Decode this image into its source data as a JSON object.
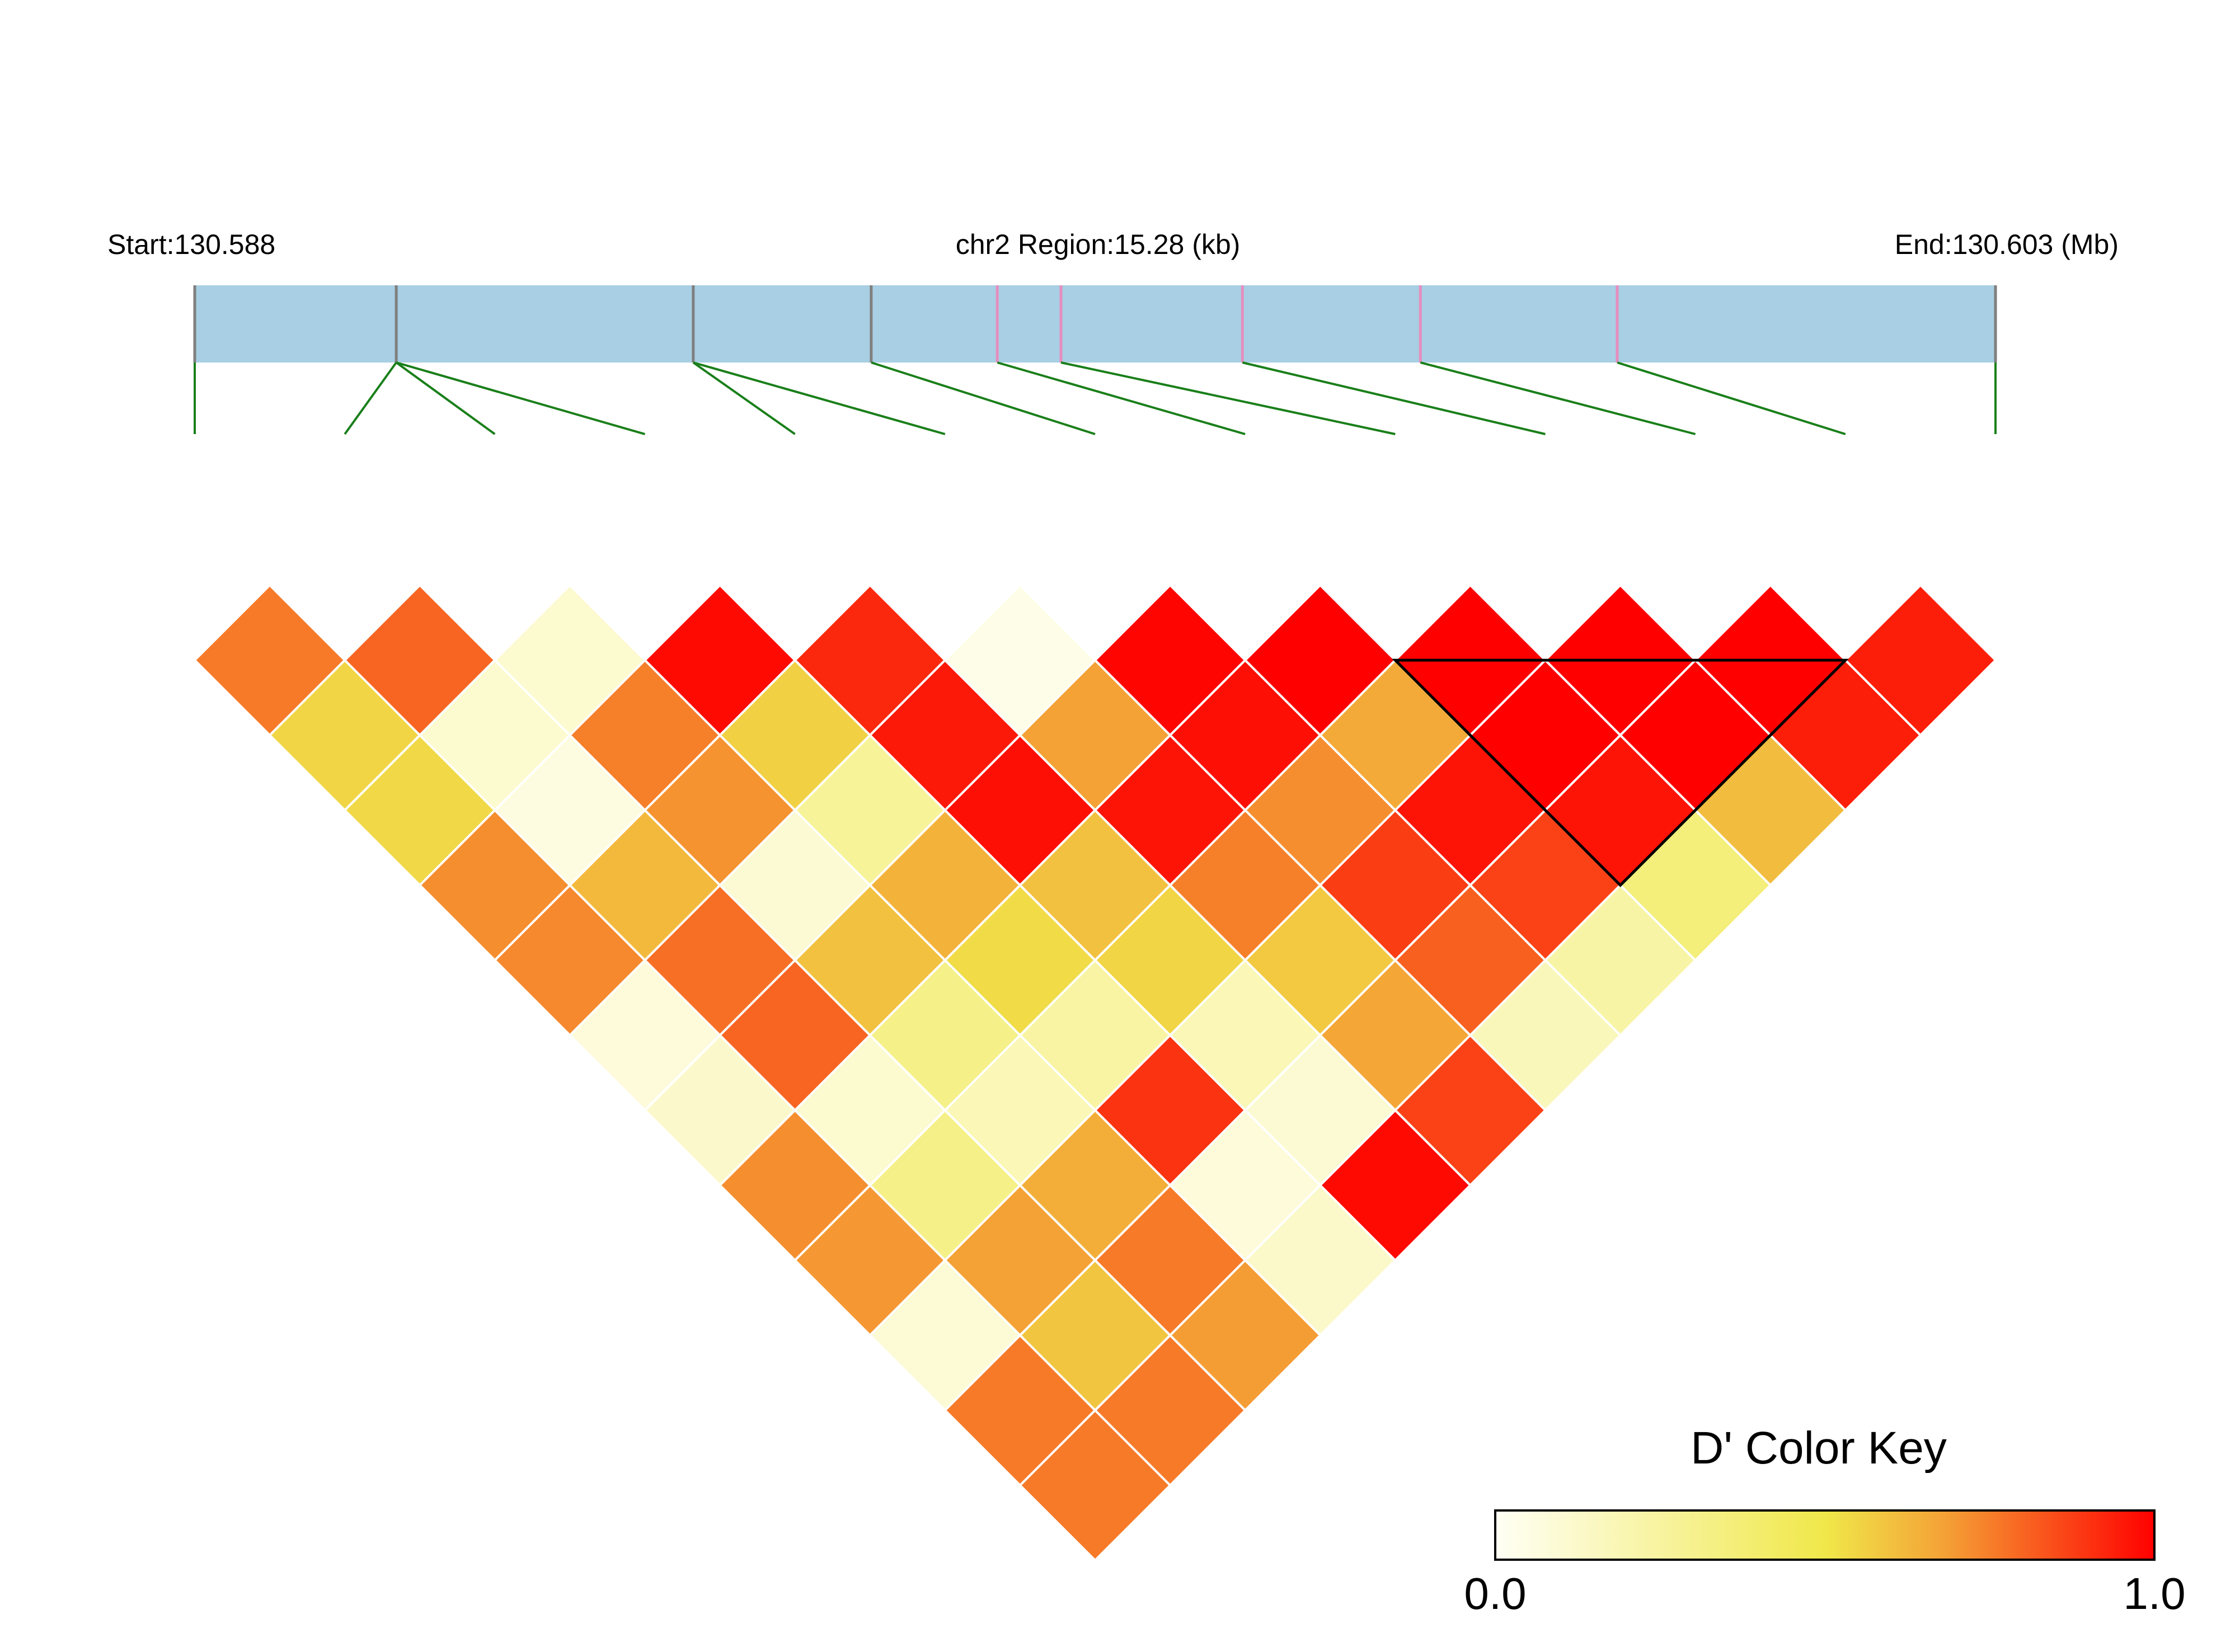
{
  "header": {
    "start_label": "Start:130.588",
    "region_label": "chr2 Region:15.28 (kb)",
    "end_label": "End:130.603 (Mb)"
  },
  "colors": {
    "track_fill": "#a8cfe3",
    "tick_gray": "#7f7f7f",
    "tick_pink": "#e58ebf",
    "connector_green": "#1a7f1a",
    "cell_border": "#ffffff",
    "block_outline": "#000000",
    "scale_low": "#fffff5",
    "scale_mid": "#f0e84a",
    "scale_orange": "#f4a236",
    "scale_high": "#ff0000"
  },
  "chart_data": {
    "type": "heatmap",
    "chromosome": "chr2",
    "region_start_mb": 130.588,
    "region_end_mb": 130.603,
    "region_size_kb": 15.28,
    "n_snps": 13,
    "snp_positions_kb": [
      0.0,
      1.71,
      1.71,
      1.71,
      4.23,
      4.23,
      5.74,
      6.81,
      7.35,
      8.89,
      10.4,
      12.07,
      15.28
    ],
    "snp_marker_colors": [
      "gray",
      "gray",
      "gray",
      "gray",
      "gray",
      "gray",
      "gray",
      "pink",
      "pink",
      "pink",
      "pink",
      "pink",
      "gray"
    ],
    "dprime_matrix": [
      [
        null,
        0.76,
        0.55,
        0.54,
        0.72,
        0.73,
        0.08,
        0.12,
        0.72,
        0.7,
        0.09,
        0.76,
        0.76
      ],
      [
        0.76,
        null,
        0.8,
        0.11,
        0.06,
        0.62,
        0.78,
        0.8,
        0.11,
        0.32,
        0.68,
        0.59,
        0.76
      ],
      [
        0.55,
        0.8,
        null,
        0.11,
        0.75,
        0.71,
        0.1,
        0.6,
        0.32,
        0.18,
        0.65,
        0.76,
        0.69
      ],
      [
        0.54,
        0.11,
        0.11,
        null,
        0.98,
        0.56,
        0.27,
        0.64,
        0.53,
        0.24,
        0.9,
        0.08,
        0.13
      ],
      [
        0.72,
        0.06,
        0.75,
        0.98,
        null,
        0.92,
        0.95,
        0.97,
        0.6,
        0.55,
        0.18,
        0.1,
        0.98
      ],
      [
        0.73,
        0.62,
        0.71,
        0.56,
        0.92,
        null,
        0.04,
        0.68,
        0.96,
        0.75,
        0.58,
        0.67,
        0.87
      ],
      [
        0.08,
        0.78,
        0.1,
        0.27,
        0.95,
        0.04,
        null,
        0.99,
        0.97,
        0.72,
        0.88,
        0.81,
        0.17
      ],
      [
        0.12,
        0.8,
        0.6,
        0.64,
        0.97,
        0.68,
        0.99,
        null,
        1.0,
        0.66,
        0.96,
        0.87,
        0.23
      ],
      [
        0.72,
        0.11,
        0.32,
        0.53,
        0.6,
        0.96,
        0.97,
        1.0,
        null,
        1.0,
        1.0,
        0.96,
        0.36
      ],
      [
        0.7,
        0.32,
        0.18,
        0.24,
        0.55,
        0.75,
        0.72,
        0.66,
        1.0,
        null,
        1.0,
        1.0,
        0.61
      ],
      [
        0.09,
        0.68,
        0.65,
        0.9,
        0.18,
        0.58,
        0.88,
        0.96,
        1.0,
        1.0,
        null,
        1.0,
        0.94
      ],
      [
        0.76,
        0.59,
        0.76,
        0.08,
        0.1,
        0.67,
        0.81,
        0.87,
        0.96,
        1.0,
        1.0,
        null,
        0.94
      ],
      [
        0.76,
        0.76,
        0.69,
        0.13,
        0.98,
        0.87,
        0.17,
        0.23,
        0.36,
        0.61,
        0.94,
        0.94,
        null
      ]
    ],
    "haplotype_blocks": [
      {
        "snps": [
          8,
          9,
          10,
          11
        ]
      }
    ],
    "color_key": {
      "title": "D' Color Key",
      "min_label": "0.0",
      "max_label": "1.0",
      "range": [
        0.0,
        1.0
      ]
    }
  }
}
